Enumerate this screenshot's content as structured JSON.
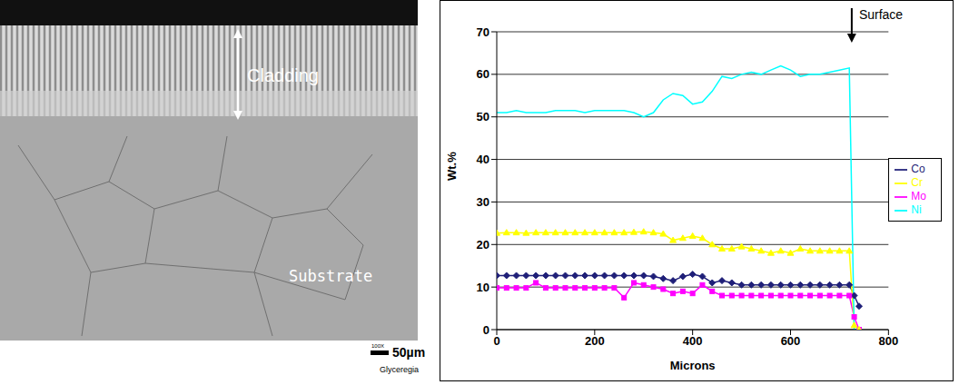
{
  "chart_data": {
    "type": "line",
    "xlabel": "Microns",
    "ylabel": "Wt.%",
    "x": [
      0,
      20,
      40,
      60,
      80,
      100,
      120,
      140,
      160,
      180,
      200,
      220,
      240,
      260,
      280,
      300,
      320,
      340,
      360,
      380,
      400,
      420,
      440,
      460,
      480,
      500,
      520,
      540,
      560,
      580,
      600,
      620,
      640,
      660,
      680,
      700,
      720,
      730,
      740
    ],
    "series": [
      {
        "name": "Co",
        "color": "#1f1f78",
        "marker": "diamond",
        "values": [
          12.7,
          12.7,
          12.7,
          12.7,
          12.7,
          12.7,
          12.7,
          12.7,
          12.7,
          12.7,
          12.7,
          12.7,
          12.7,
          12.7,
          12.7,
          12.7,
          12.5,
          12,
          11.5,
          12.5,
          13,
          12.5,
          11,
          11.5,
          11,
          10.5,
          10.5,
          10.5,
          10.5,
          10.5,
          10.5,
          10.5,
          10.5,
          10.5,
          10.5,
          10.5,
          10.5,
          8,
          5.5
        ]
      },
      {
        "name": "Mo",
        "color": "#ff00ff",
        "marker": "square",
        "values": [
          9.8,
          9.8,
          9.8,
          9.8,
          11,
          9.8,
          9.8,
          9.8,
          9.8,
          9.8,
          9.8,
          9.8,
          9.8,
          7.5,
          11,
          10.5,
          10,
          9.5,
          8.5,
          9,
          8.5,
          10.5,
          9,
          8,
          8,
          8,
          8,
          8,
          8,
          8,
          8,
          8,
          8,
          8,
          8,
          8,
          8,
          3,
          0
        ]
      },
      {
        "name": "Cr",
        "color": "#ffff00",
        "marker": "triangle",
        "values": [
          22.7,
          22.8,
          22.8,
          22.7,
          22.8,
          22.8,
          22.8,
          22.8,
          22.8,
          22.8,
          22.8,
          22.8,
          22.8,
          22.8,
          22.9,
          23,
          22.8,
          22.5,
          21,
          21.5,
          22,
          21.5,
          20,
          19,
          19,
          19.5,
          19,
          18.5,
          18,
          18.5,
          18,
          19,
          18.5,
          18.5,
          18.5,
          18.5,
          18.5,
          1,
          0
        ]
      },
      {
        "name": "Ni",
        "color": "#00ffff",
        "marker": "none",
        "values": [
          51,
          51,
          51.5,
          51,
          51,
          51,
          51.5,
          51.5,
          51.5,
          51,
          51.5,
          51.5,
          51.5,
          51.5,
          51,
          50,
          51,
          54,
          55.5,
          55,
          53,
          53.5,
          56,
          59.5,
          59,
          60,
          60.5,
          60,
          61,
          62,
          61,
          59.5,
          60,
          60,
          60.5,
          61,
          61.5,
          0,
          0
        ]
      }
    ],
    "xlim": [
      0,
      800
    ],
    "xticks": [
      0,
      200,
      400,
      600,
      800
    ],
    "ylim": [
      0,
      70
    ],
    "yticks": [
      0,
      10,
      20,
      30,
      40,
      50,
      60,
      70
    ],
    "grid": true,
    "legend": "right",
    "annotations": [
      {
        "text": "Surface",
        "x": 725,
        "y": 70
      }
    ]
  },
  "micrograph": {
    "labels": [
      "Cladding",
      "Substrate"
    ],
    "scale_bar": "50µm",
    "magnification": "100X",
    "etchant": "Glyceregia"
  }
}
